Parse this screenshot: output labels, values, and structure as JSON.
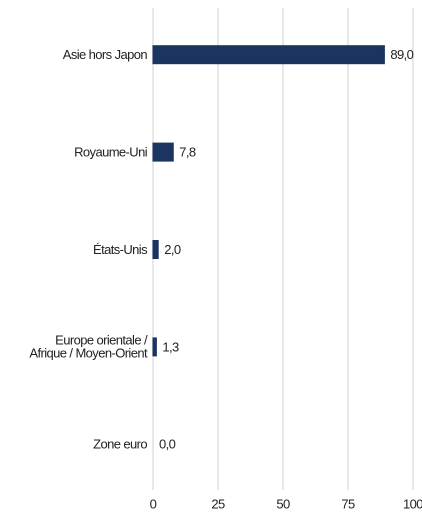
{
  "chart_data": {
    "type": "bar",
    "orientation": "horizontal",
    "categories": [
      "Asie hors Japon",
      "Royaume-Uni",
      "États-Unis",
      "Europe orientale /\nAfrique / Moyen-Orient",
      "Zone euro"
    ],
    "values": [
      89.0,
      7.8,
      2.0,
      1.3,
      0.0
    ],
    "value_labels": [
      "89,0",
      "7,8",
      "2,0",
      "1,3",
      "0,0"
    ],
    "color": "#1b3560",
    "xlim": [
      0,
      100
    ],
    "xticks": [
      0,
      25,
      50,
      75,
      100
    ],
    "grid": true
  }
}
